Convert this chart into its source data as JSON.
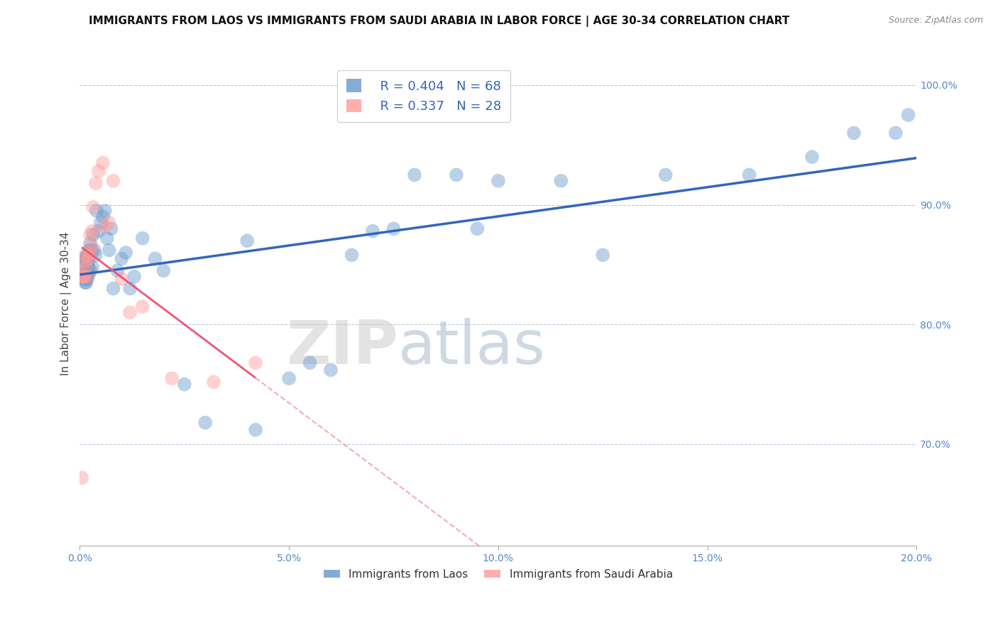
{
  "title": "IMMIGRANTS FROM LAOS VS IMMIGRANTS FROM SAUDI ARABIA IN LABOR FORCE | AGE 30-34 CORRELATION CHART",
  "source_text": "Source: ZipAtlas.com",
  "ylabel": "In Labor Force | Age 30-34",
  "xlim": [
    0.0,
    0.2
  ],
  "ylim": [
    0.615,
    1.02
  ],
  "xtick_labels": [
    "0.0%",
    "5.0%",
    "10.0%",
    "15.0%",
    "20.0%"
  ],
  "xtick_values": [
    0.0,
    0.05,
    0.1,
    0.15,
    0.2
  ],
  "ytick_labels": [
    "70.0%",
    "80.0%",
    "90.0%",
    "100.0%"
  ],
  "ytick_values": [
    0.7,
    0.8,
    0.9,
    1.0
  ],
  "legend_r_laos": "R = 0.404",
  "legend_n_laos": "N = 68",
  "legend_r_saudi": "R = 0.337",
  "legend_n_saudi": "N = 28",
  "color_laos": "#6699CC",
  "color_saudi": "#FF9999",
  "watermark_zip": "ZIP",
  "watermark_atlas": "atlas",
  "laos_x": [
    0.0005,
    0.0008,
    0.001,
    0.001,
    0.0012,
    0.0012,
    0.0013,
    0.0013,
    0.0015,
    0.0015,
    0.0015,
    0.0016,
    0.0017,
    0.0018,
    0.0018,
    0.0018,
    0.002,
    0.002,
    0.002,
    0.0022,
    0.0022,
    0.0025,
    0.0025,
    0.0025,
    0.0028,
    0.003,
    0.0032,
    0.0035,
    0.0038,
    0.004,
    0.0045,
    0.005,
    0.0055,
    0.006,
    0.0065,
    0.007,
    0.0075,
    0.008,
    0.009,
    0.01,
    0.011,
    0.012,
    0.013,
    0.015,
    0.018,
    0.02,
    0.025,
    0.03,
    0.04,
    0.05,
    0.055,
    0.065,
    0.07,
    0.075,
    0.08,
    0.09,
    0.095,
    0.1,
    0.115,
    0.125,
    0.14,
    0.16,
    0.175,
    0.185,
    0.195,
    0.198,
    0.042,
    0.06
  ],
  "laos_y": [
    0.84,
    0.855,
    0.838,
    0.848,
    0.84,
    0.855,
    0.842,
    0.835,
    0.84,
    0.845,
    0.835,
    0.855,
    0.84,
    0.842,
    0.852,
    0.838,
    0.852,
    0.86,
    0.848,
    0.862,
    0.842,
    0.868,
    0.858,
    0.845,
    0.862,
    0.848,
    0.875,
    0.862,
    0.858,
    0.895,
    0.878,
    0.885,
    0.89,
    0.895,
    0.872,
    0.862,
    0.88,
    0.83,
    0.845,
    0.855,
    0.86,
    0.83,
    0.84,
    0.872,
    0.855,
    0.845,
    0.75,
    0.718,
    0.87,
    0.755,
    0.768,
    0.858,
    0.878,
    0.88,
    0.925,
    0.925,
    0.88,
    0.92,
    0.92,
    0.858,
    0.925,
    0.925,
    0.94,
    0.96,
    0.96,
    0.975,
    0.712,
    0.762
  ],
  "saudi_x": [
    0.0005,
    0.0007,
    0.0009,
    0.001,
    0.0012,
    0.0013,
    0.0015,
    0.0015,
    0.0018,
    0.002,
    0.0022,
    0.0025,
    0.0025,
    0.0028,
    0.003,
    0.0032,
    0.0038,
    0.0045,
    0.0055,
    0.006,
    0.007,
    0.008,
    0.01,
    0.012,
    0.015,
    0.022,
    0.032,
    0.042
  ],
  "saudi_y": [
    0.672,
    0.84,
    0.84,
    0.84,
    0.84,
    0.852,
    0.858,
    0.848,
    0.84,
    0.855,
    0.858,
    0.875,
    0.86,
    0.865,
    0.878,
    0.898,
    0.918,
    0.928,
    0.935,
    0.882,
    0.885,
    0.92,
    0.838,
    0.81,
    0.815,
    0.755,
    0.752,
    0.768
  ],
  "title_fontsize": 11,
  "tick_fontsize": 10,
  "axis_label_fontsize": 11
}
